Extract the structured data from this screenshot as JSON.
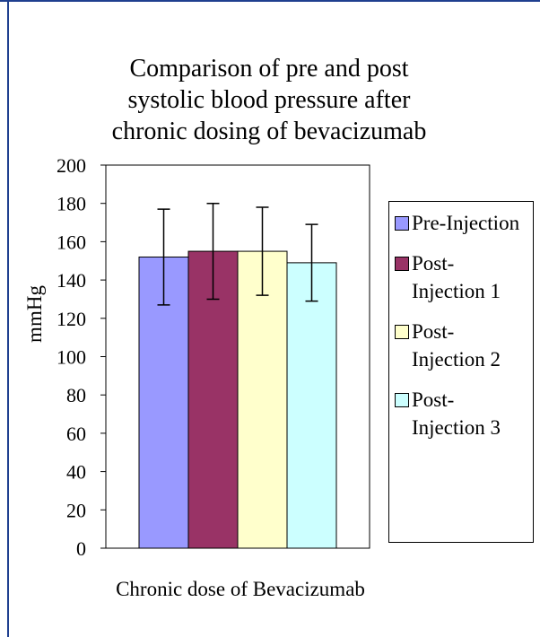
{
  "chart_data": {
    "type": "bar",
    "title": "Comparison of pre and post systolic blood pressure after chronic dosing of bevacizumab",
    "x_label": "Chronic dose of Bevacizumab",
    "y_label": "mmHg",
    "categories": [
      null
    ],
    "series": [
      {
        "name": "Pre-Injection",
        "color": "#9999ff",
        "values": [
          152
        ],
        "errors": [
          25
        ]
      },
      {
        "name": "Post-Injection 1",
        "color": "#993366",
        "values": [
          155
        ],
        "errors": [
          25
        ]
      },
      {
        "name": "Post-Injection 2",
        "color": "#ffffcc",
        "values": [
          155
        ],
        "errors": [
          23
        ]
      },
      {
        "name": "Post-Injection 3",
        "color": "#ccffff",
        "values": [
          149
        ],
        "errors": [
          20
        ]
      }
    ],
    "ylim": [
      0,
      200
    ],
    "yticks": [
      0,
      20,
      40,
      60,
      80,
      100,
      120,
      140,
      160,
      180,
      200
    ],
    "grid": false,
    "legend": "right"
  }
}
